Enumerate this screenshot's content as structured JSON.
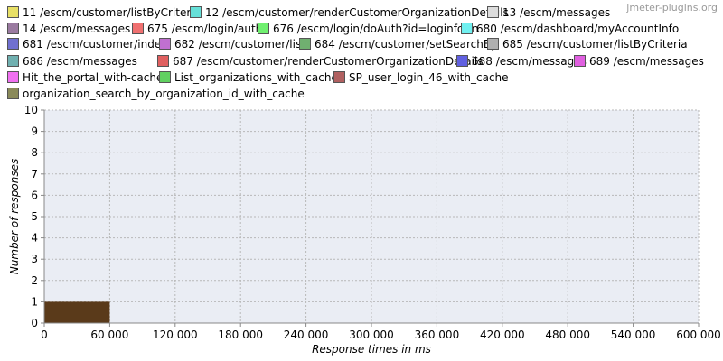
{
  "watermark": "jmeter-plugins.org",
  "chart_data": {
    "type": "bar",
    "xlabel": "Response times in ms",
    "ylabel": "Number of responses",
    "xlim": [
      0,
      600000
    ],
    "ylim": [
      0,
      10
    ],
    "grid": true,
    "x_ticks": [
      0,
      60000,
      120000,
      180000,
      240000,
      300000,
      360000,
      420000,
      480000,
      540000,
      600000
    ],
    "x_tick_labels": [
      "0",
      "60 000",
      "120 000",
      "180 000",
      "240 000",
      "300 000",
      "360 000",
      "420 000",
      "480 000",
      "540 000",
      "600 000"
    ],
    "y_ticks": [
      0,
      1,
      2,
      3,
      4,
      5,
      6,
      7,
      8,
      9,
      10
    ],
    "y_tick_labels": [
      "0",
      "1",
      "2",
      "3",
      "4",
      "5",
      "6",
      "7",
      "8",
      "9",
      "10"
    ],
    "legend_position": "top",
    "series": [
      {
        "name": "11 /escm/customer/listByCriteria",
        "color": "#e8e066",
        "bins": []
      },
      {
        "name": "12 /escm/customer/renderCustomerOrganizationDetails",
        "color": "#66e0d8",
        "bins": []
      },
      {
        "name": "13 /escm/messages",
        "color": "#dcdcdc",
        "bins": []
      },
      {
        "name": "14 /escm/messages",
        "color": "#9a7aa0",
        "bins": []
      },
      {
        "name": "675 /escm/login/auth",
        "color": "#f07070",
        "bins": []
      },
      {
        "name": "676 /escm/login/doAuth?id=loginform",
        "color": "#70f070",
        "bins": []
      },
      {
        "name": "680 /escm/dashboard/myAccountInfo",
        "color": "#70f0f0",
        "bins": []
      },
      {
        "name": "681 /escm/customer/index",
        "color": "#7070d0",
        "bins": []
      },
      {
        "name": "682 /escm/customer/list",
        "color": "#c070d0",
        "bins": []
      },
      {
        "name": "684 /escm/customer/setSearchBy",
        "color": "#70b070",
        "bins": []
      },
      {
        "name": "685 /escm/customer/listByCriteria",
        "color": "#b0b0b0",
        "bins": []
      },
      {
        "name": "686 /escm/messages",
        "color": "#70b0b0",
        "bins": []
      },
      {
        "name": "687 /escm/customer/renderCustomerOrganizationDetails",
        "color": "#e06060",
        "bins": []
      },
      {
        "name": "688 /escm/messages",
        "color": "#6060e0",
        "bins": []
      },
      {
        "name": "689 /escm/messages",
        "color": "#e060e0",
        "bins": []
      },
      {
        "name": "Hit_the_portal_with-cache",
        "color": "#f070f0",
        "bins": []
      },
      {
        "name": "List_organizations_with_cache",
        "color": "#60d060",
        "bins": []
      },
      {
        "name": "SP_user_login_46_with_cache",
        "color": "#b06060",
        "bins": []
      },
      {
        "name": "organization_search_by_organization_id_with_cache",
        "color": "#8a8a5a",
        "bins": [
          {
            "x0": 0,
            "x1": 60000,
            "count": 1
          }
        ]
      }
    ],
    "bar_color": "#5a3a1a"
  }
}
